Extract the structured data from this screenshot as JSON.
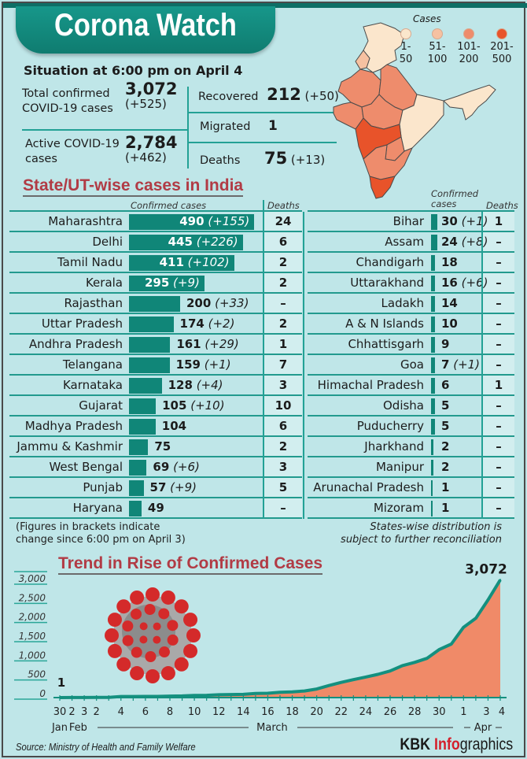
{
  "header": {
    "title": "Corona Watch",
    "situation": "Situation at 6:00 pm on April 4"
  },
  "summary": {
    "total": {
      "label_line1": "Total confirmed",
      "label_line2": "COVID-19 cases",
      "value": "3,072",
      "change": "(+525)"
    },
    "active": {
      "label_line1": "Active COVID-19",
      "label_line2": "cases",
      "value": "2,784",
      "change": "(+462)"
    },
    "recovered": {
      "label": "Recovered",
      "value": "212",
      "change": "(+50)"
    },
    "migrated": {
      "label": "Migrated",
      "value": "1"
    },
    "deaths": {
      "label": "Deaths",
      "value": "75",
      "change": "(+13)"
    }
  },
  "map_legend": {
    "title": "Cases",
    "items": [
      {
        "line1": "1-",
        "line2": "50",
        "color": "#fbe6cc"
      },
      {
        "line1": "51-",
        "line2": "100",
        "color": "#f6c1a1"
      },
      {
        "line1": "101-",
        "line2": "200",
        "color": "#ee8c6c"
      },
      {
        "line1": "201-",
        "line2": "500",
        "color": "#e8532a"
      }
    ]
  },
  "state_section": {
    "title": "State/UT-wise cases in India",
    "left_header_confirmed": "Confirmed cases",
    "left_header_deaths": "Deaths",
    "right_header_confirmed_1": "Confirmed",
    "right_header_confirmed_2": "cases",
    "right_header_deaths": "Deaths",
    "left_rows": [
      {
        "name": "Maharashtra",
        "cases": 490,
        "cases_text": "490",
        "change": "(+155)",
        "deaths": "24"
      },
      {
        "name": "Delhi",
        "cases": 445,
        "cases_text": "445",
        "change": "(+226)",
        "deaths": "6"
      },
      {
        "name": "Tamil Nadu",
        "cases": 411,
        "cases_text": "411",
        "change": "(+102)",
        "deaths": "2"
      },
      {
        "name": "Kerala",
        "cases": 295,
        "cases_text": "295",
        "change": "(+9)",
        "deaths": "2"
      },
      {
        "name": "Rajasthan",
        "cases": 200,
        "cases_text": "200",
        "change": "(+33)",
        "deaths": "–"
      },
      {
        "name": "Uttar Pradesh",
        "cases": 174,
        "cases_text": "174",
        "change": "(+2)",
        "deaths": "2"
      },
      {
        "name": "Andhra Pradesh",
        "cases": 161,
        "cases_text": "161",
        "change": "(+29)",
        "deaths": "1"
      },
      {
        "name": "Telangana",
        "cases": 159,
        "cases_text": "159",
        "change": "(+1)",
        "deaths": "7"
      },
      {
        "name": "Karnataka",
        "cases": 128,
        "cases_text": "128",
        "change": "(+4)",
        "deaths": "3"
      },
      {
        "name": "Gujarat",
        "cases": 105,
        "cases_text": "105",
        "change": "(+10)",
        "deaths": "10"
      },
      {
        "name": "Madhya Pradesh",
        "cases": 104,
        "cases_text": "104",
        "change": "",
        "deaths": "6"
      },
      {
        "name": "Jammu & Kashmir",
        "cases": 75,
        "cases_text": "75",
        "change": "",
        "deaths": "2"
      },
      {
        "name": "West Bengal",
        "cases": 69,
        "cases_text": "69",
        "change": "(+6)",
        "deaths": "3"
      },
      {
        "name": "Punjab",
        "cases": 57,
        "cases_text": "57",
        "change": "(+9)",
        "deaths": "5"
      },
      {
        "name": "Haryana",
        "cases": 49,
        "cases_text": "49",
        "change": "",
        "deaths": "–"
      }
    ],
    "right_rows": [
      {
        "name": "Bihar",
        "cases": 30,
        "cases_text": "30",
        "change": "(+1)",
        "deaths": "1"
      },
      {
        "name": "Assam",
        "cases": 24,
        "cases_text": "24",
        "change": "(+8)",
        "deaths": "–"
      },
      {
        "name": "Chandigarh",
        "cases": 18,
        "cases_text": "18",
        "change": "",
        "deaths": "–"
      },
      {
        "name": "Uttarakhand",
        "cases": 16,
        "cases_text": "16",
        "change": "(+6)",
        "deaths": "–"
      },
      {
        "name": "Ladakh",
        "cases": 14,
        "cases_text": "14",
        "change": "",
        "deaths": "–"
      },
      {
        "name": "A & N Islands",
        "cases": 10,
        "cases_text": "10",
        "change": "",
        "deaths": "–"
      },
      {
        "name": "Chhattisgarh",
        "cases": 9,
        "cases_text": "9",
        "change": "",
        "deaths": "–"
      },
      {
        "name": "Goa",
        "cases": 7,
        "cases_text": "7",
        "change": "(+1)",
        "deaths": "–"
      },
      {
        "name": "Himachal Pradesh",
        "cases": 6,
        "cases_text": "6",
        "change": "",
        "deaths": "1"
      },
      {
        "name": "Odisha",
        "cases": 5,
        "cases_text": "5",
        "change": "",
        "deaths": "–"
      },
      {
        "name": "Puducherry",
        "cases": 5,
        "cases_text": "5",
        "change": "",
        "deaths": "–"
      },
      {
        "name": "Jharkhand",
        "cases": 2,
        "cases_text": "2",
        "change": "",
        "deaths": "–"
      },
      {
        "name": "Manipur",
        "cases": 2,
        "cases_text": "2",
        "change": "",
        "deaths": "–"
      },
      {
        "name": "Arunachal Pradesh",
        "cases": 1,
        "cases_text": "1",
        "change": "",
        "deaths": "–"
      },
      {
        "name": "Mizoram",
        "cases": 1,
        "cases_text": "1",
        "change": "",
        "deaths": "–"
      }
    ],
    "note_left_1": "(Figures in brackets indicate",
    "note_left_2": "change since 6:00 pm on April 3)",
    "note_right_1": "States-wise distribution is",
    "note_right_2": "subject to further reconciliation"
  },
  "chart_data": {
    "type": "area",
    "title": "Trend in Rise of Confirmed Cases",
    "xlabel": "",
    "ylabel": "",
    "ylim": [
      0,
      3000
    ],
    "yticks": [
      0,
      500,
      1000,
      1500,
      2000,
      2500,
      3000
    ],
    "ytick_labels": [
      "0",
      "500",
      "1,000",
      "1,500",
      "2,000",
      "2,500",
      "3,000"
    ],
    "x_tick_labels": [
      "30",
      "2",
      "3",
      "2",
      "4",
      "6",
      "8",
      "10",
      "12",
      "14",
      "16",
      "18",
      "20",
      "22",
      "24",
      "26",
      "28",
      "30",
      "1",
      "3",
      "4"
    ],
    "month_labels": [
      "Jan",
      "Feb",
      "March",
      "Apr"
    ],
    "x": [
      "Jan 30",
      "Feb 2",
      "Feb 3",
      "Mar 2",
      "Mar 3",
      "Mar 4",
      "Mar 5",
      "Mar 6",
      "Mar 7",
      "Mar 8",
      "Mar 9",
      "Mar 10",
      "Mar 11",
      "Mar 12",
      "Mar 13",
      "Mar 14",
      "Mar 15",
      "Mar 16",
      "Mar 17",
      "Mar 18",
      "Mar 19",
      "Mar 20",
      "Mar 21",
      "Mar 22",
      "Mar 23",
      "Mar 24",
      "Mar 25",
      "Mar 26",
      "Mar 27",
      "Mar 28",
      "Mar 29",
      "Mar 30",
      "Mar 31",
      "Apr 1",
      "Apr 2",
      "Apr 3",
      "Apr 4"
    ],
    "values": [
      1,
      2,
      3,
      5,
      6,
      28,
      29,
      30,
      31,
      39,
      43,
      56,
      60,
      73,
      81,
      84,
      107,
      114,
      137,
      151,
      173,
      223,
      315,
      396,
      468,
      536,
      606,
      694,
      834,
      918,
      1024,
      1251,
      1397,
      1834,
      2069,
      2547,
      3072
    ],
    "annotations": [
      {
        "x": "Jan 30",
        "label": "1"
      },
      {
        "x": "Apr 4",
        "label": "3,072"
      }
    ],
    "colors": {
      "line": "#14907f",
      "fill": "#f08a68"
    }
  },
  "footer": {
    "source": "Source: Ministry of Health and Family Welfare",
    "brand_kbk": "KBK ",
    "brand_info": "Info",
    "brand_graphics": "graphics"
  }
}
